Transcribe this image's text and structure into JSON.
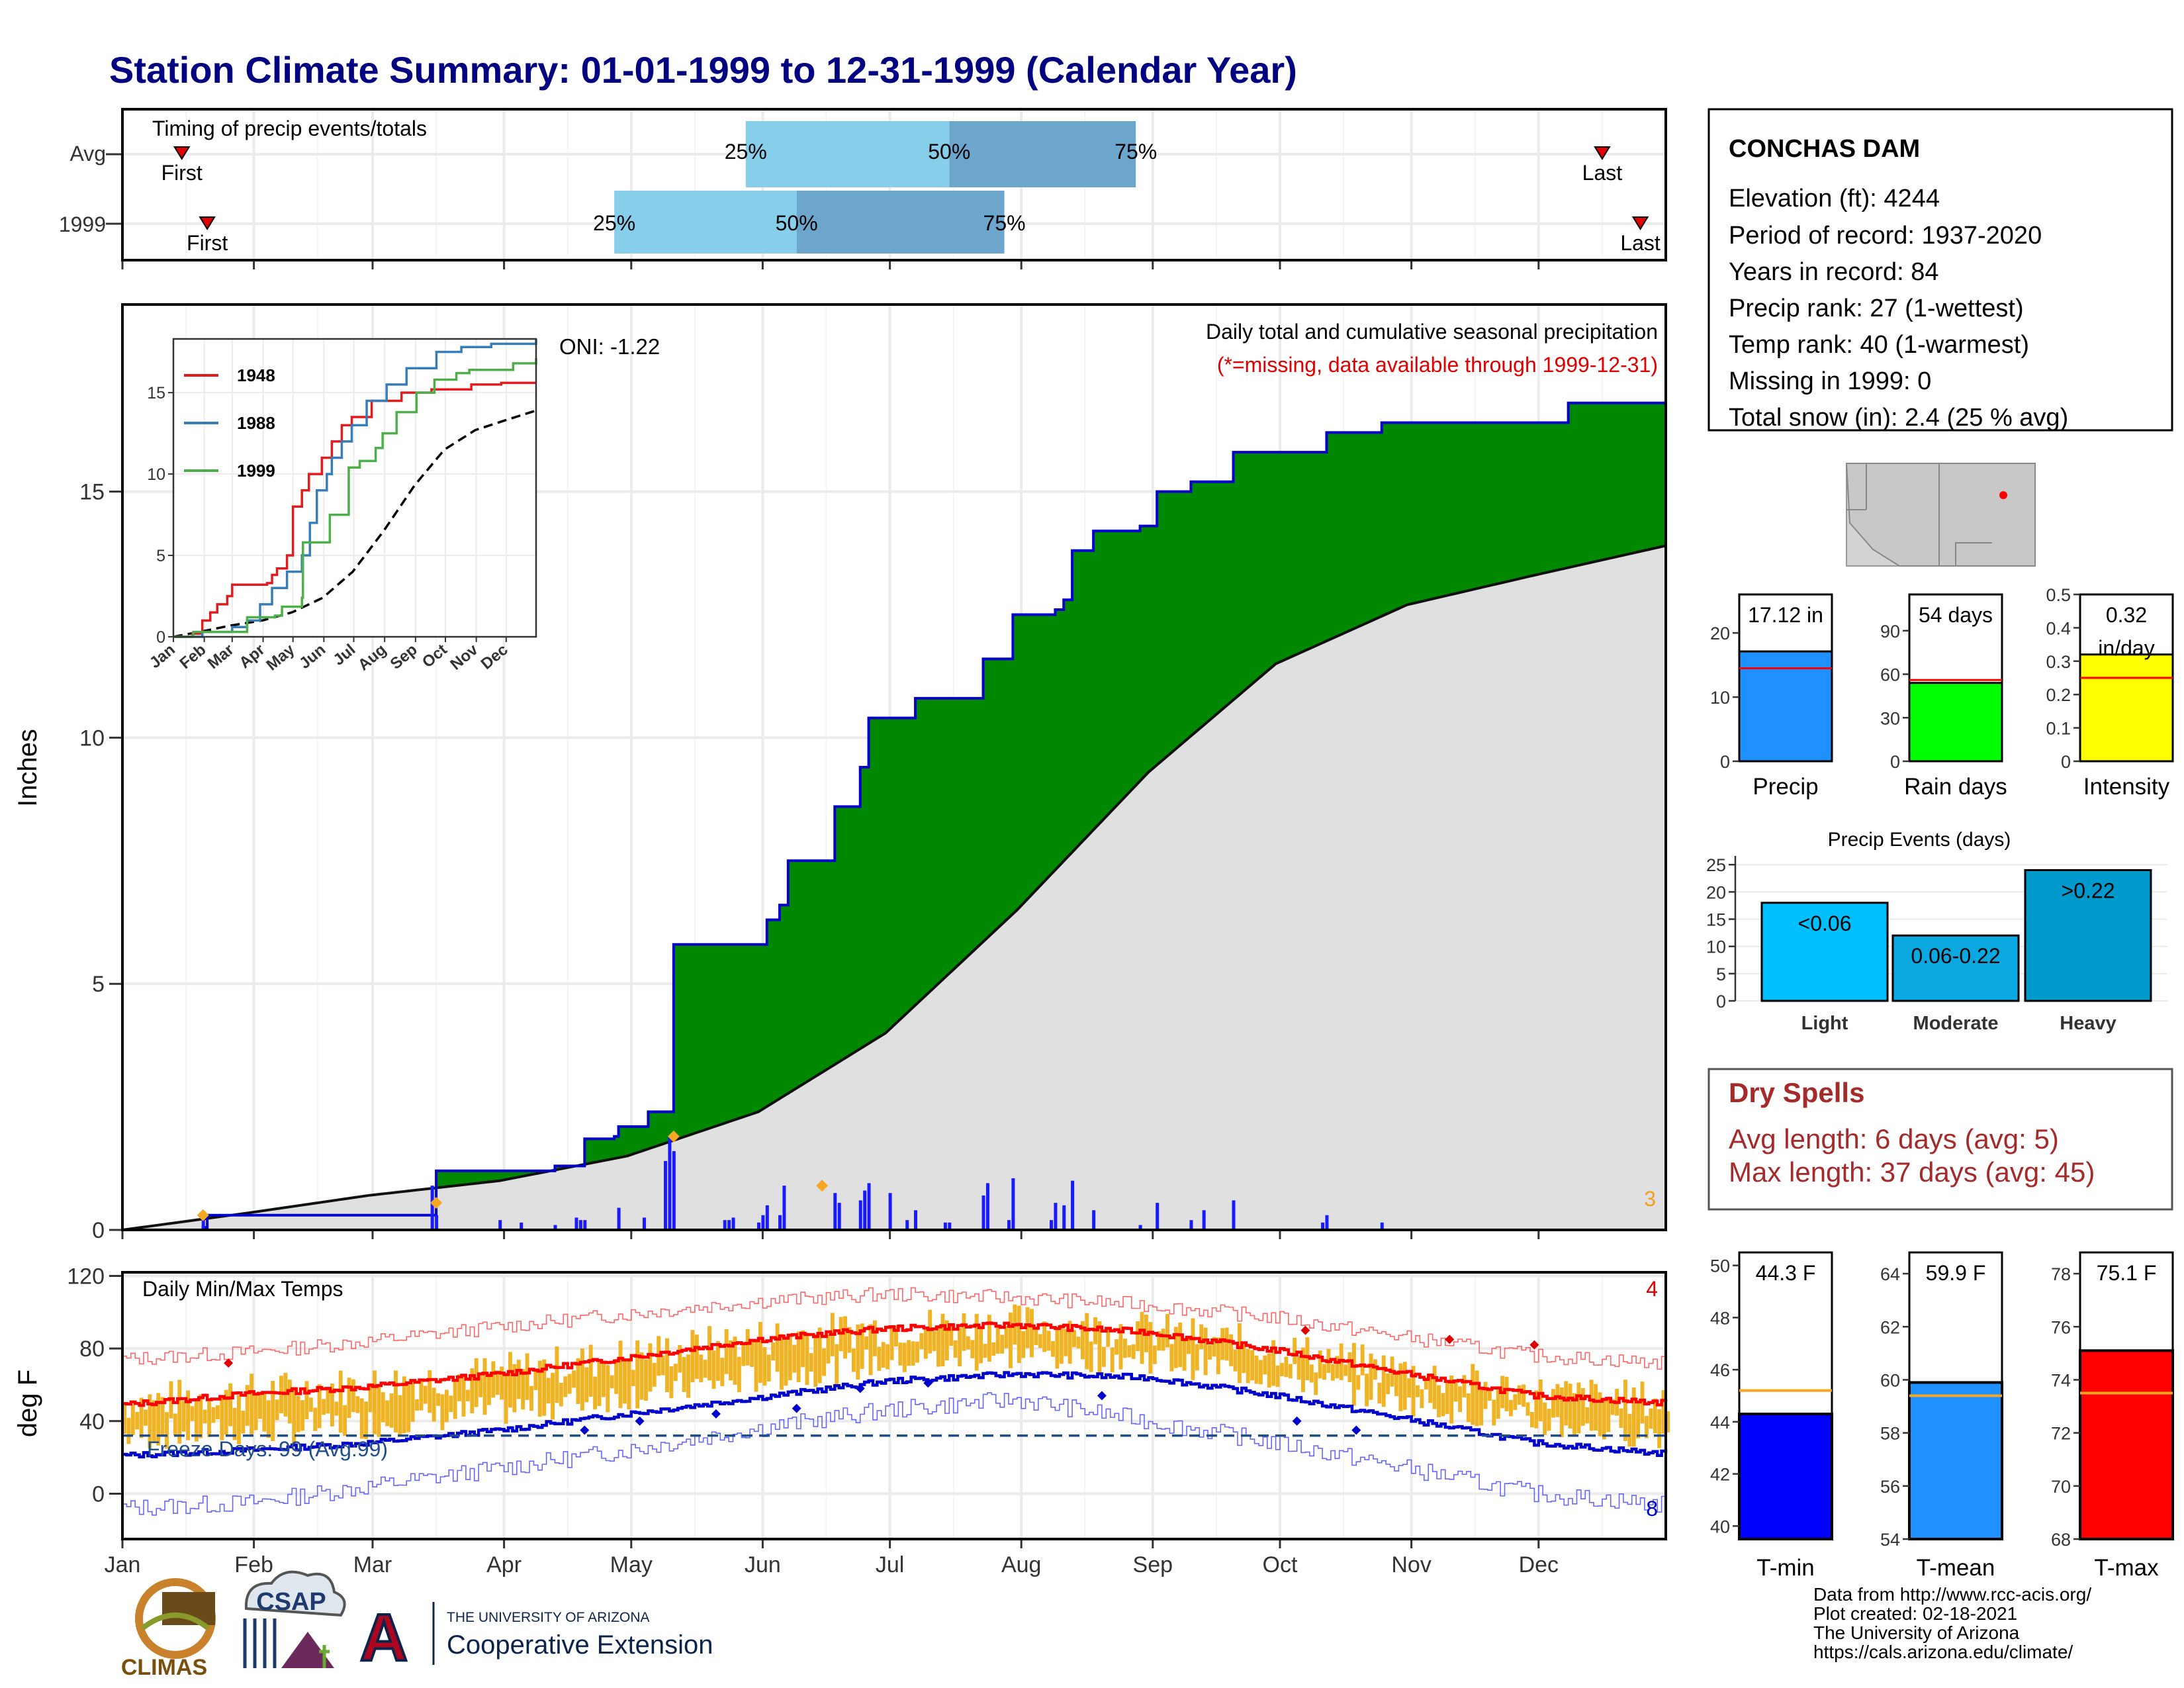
{
  "title": "Station Climate Summary: 01-01-1999 to 12-31-1999 (Calendar Year)",
  "months": [
    "Jan",
    "Feb",
    "Mar",
    "Apr",
    "May",
    "Jun",
    "Jul",
    "Aug",
    "Sep",
    "Oct",
    "Nov",
    "Dec"
  ],
  "timing": {
    "label": "Timing of precip events/totals",
    "rows": [
      {
        "name": "Avg",
        "first_label": "First",
        "first_doy": 15,
        "last_label": "Last",
        "last_doy": 350,
        "q25": 148,
        "q50": 196,
        "q75": 240
      },
      {
        "name": "1999",
        "first_label": "First",
        "first_doy": 21,
        "last_label": "Last",
        "last_doy": 359,
        "q25": 117,
        "q50": 160,
        "q75": 209
      }
    ],
    "pct_labels": [
      "25%",
      "50%",
      "75%"
    ]
  },
  "precip": {
    "ylabel": "Inches",
    "yticks": [
      0,
      5,
      10,
      15
    ],
    "ylim": [
      0,
      18.8
    ],
    "oni": "ONI: -1.22",
    "caption": "Daily total and cumulative seasonal precipitation",
    "note": "(*=missing, data available through 1999-12-31)",
    "corner_count": "3",
    "colors": {
      "above": "#008800",
      "below": "#7a4f0e",
      "normal": "#e0e0e0",
      "line": "#0000cc",
      "daily": "#1a1aff"
    },
    "cumulative_1999": [
      [
        1,
        0
      ],
      [
        20,
        0.05
      ],
      [
        21,
        0.3
      ],
      [
        74,
        0.3
      ],
      [
        75,
        1.2
      ],
      [
        90,
        1.2
      ],
      [
        95,
        1.2
      ],
      [
        103,
        1.3
      ],
      [
        110,
        1.85
      ],
      [
        117,
        1.9
      ],
      [
        118,
        2.1
      ],
      [
        125,
        2.4
      ],
      [
        130,
        2.4
      ],
      [
        131,
        5.8
      ],
      [
        151,
        5.8
      ],
      [
        153,
        6.3
      ],
      [
        156,
        6.6
      ],
      [
        158,
        7.5
      ],
      [
        168,
        7.5
      ],
      [
        169,
        8.6
      ],
      [
        175,
        9.4
      ],
      [
        177,
        10.4
      ],
      [
        186,
        10.4
      ],
      [
        188,
        10.8
      ],
      [
        200,
        10.8
      ],
      [
        204,
        11.6
      ],
      [
        210,
        11.6
      ],
      [
        211,
        12.5
      ],
      [
        220,
        12.5
      ],
      [
        221,
        12.6
      ],
      [
        223,
        12.8
      ],
      [
        225,
        13.8
      ],
      [
        230,
        14.2
      ],
      [
        231,
        14.2
      ],
      [
        241,
        14.3
      ],
      [
        245,
        15.0
      ],
      [
        253,
        15.2
      ],
      [
        263,
        15.8
      ],
      [
        283,
        15.8
      ],
      [
        285,
        16.2
      ],
      [
        298,
        16.4
      ],
      [
        342,
        16.8
      ],
      [
        365,
        17.12
      ]
    ],
    "normal_cumulative": [
      [
        1,
        0
      ],
      [
        31,
        0.35
      ],
      [
        59,
        0.7
      ],
      [
        90,
        1.0
      ],
      [
        120,
        1.5
      ],
      [
        151,
        2.4
      ],
      [
        181,
        4.0
      ],
      [
        212,
        6.5
      ],
      [
        243,
        9.3
      ],
      [
        273,
        11.5
      ],
      [
        304,
        12.7
      ],
      [
        334,
        13.3
      ],
      [
        365,
        13.9
      ]
    ],
    "daily_1999": [
      [
        20,
        0.25
      ],
      [
        74,
        0.9
      ],
      [
        75,
        0.3
      ],
      [
        90,
        0.2
      ],
      [
        95,
        0.15
      ],
      [
        103,
        0.1
      ],
      [
        108,
        0.25
      ],
      [
        109,
        0.2
      ],
      [
        110,
        0.2
      ],
      [
        118,
        0.45
      ],
      [
        124,
        0.25
      ],
      [
        129,
        1.4
      ],
      [
        130,
        1.9
      ],
      [
        131,
        1.6
      ],
      [
        143,
        0.2
      ],
      [
        144,
        0.2
      ],
      [
        145,
        0.25
      ],
      [
        151,
        0.15
      ],
      [
        152,
        0.3
      ],
      [
        153,
        0.5
      ],
      [
        156,
        0.3
      ],
      [
        157,
        0.9
      ],
      [
        169,
        0.75
      ],
      [
        170,
        0.55
      ],
      [
        175,
        0.6
      ],
      [
        176,
        0.8
      ],
      [
        177,
        0.95
      ],
      [
        182,
        0.75
      ],
      [
        186,
        0.2
      ],
      [
        188,
        0.4
      ],
      [
        195,
        0.15
      ],
      [
        196,
        0.15
      ],
      [
        204,
        0.7
      ],
      [
        205,
        0.95
      ],
      [
        210,
        0.2
      ],
      [
        211,
        1.05
      ],
      [
        220,
        0.2
      ],
      [
        221,
        0.55
      ],
      [
        223,
        0.5
      ],
      [
        225,
        1.0
      ],
      [
        230,
        0.4
      ],
      [
        241,
        0.1
      ],
      [
        245,
        0.55
      ],
      [
        253,
        0.2
      ],
      [
        256,
        0.4
      ],
      [
        263,
        0.6
      ],
      [
        284,
        0.15
      ],
      [
        285,
        0.3
      ],
      [
        298,
        0.15
      ]
    ],
    "marker_days": [
      [
        20,
        0.3
      ],
      [
        75,
        0.55
      ],
      [
        131,
        1.9
      ],
      [
        166,
        0.9
      ]
    ]
  },
  "inset": {
    "series": [
      {
        "name": "1948",
        "color": "#e41a1c",
        "points": [
          [
            1,
            0
          ],
          [
            20,
            0.2
          ],
          [
            30,
            1
          ],
          [
            38,
            1.5
          ],
          [
            45,
            2
          ],
          [
            55,
            2.5
          ],
          [
            60,
            3.2
          ],
          [
            80,
            3.2
          ],
          [
            95,
            3.3
          ],
          [
            100,
            3.8
          ],
          [
            105,
            4.2
          ],
          [
            115,
            5
          ],
          [
            121,
            8
          ],
          [
            130,
            9
          ],
          [
            137,
            10
          ],
          [
            150,
            11
          ],
          [
            160,
            12
          ],
          [
            170,
            13
          ],
          [
            180,
            13.5
          ],
          [
            200,
            14.5
          ],
          [
            230,
            15
          ],
          [
            260,
            15.2
          ],
          [
            300,
            15.5
          ],
          [
            330,
            15.6
          ],
          [
            365,
            15.6
          ]
        ]
      },
      {
        "name": "1988",
        "color": "#377eb8",
        "points": [
          [
            1,
            0
          ],
          [
            30,
            0.3
          ],
          [
            60,
            0.6
          ],
          [
            75,
            1
          ],
          [
            88,
            2
          ],
          [
            100,
            3
          ],
          [
            115,
            4
          ],
          [
            130,
            5
          ],
          [
            138,
            7
          ],
          [
            145,
            9
          ],
          [
            155,
            10
          ],
          [
            160,
            11
          ],
          [
            170,
            12
          ],
          [
            180,
            13
          ],
          [
            195,
            14.5
          ],
          [
            215,
            15.5
          ],
          [
            235,
            16.5
          ],
          [
            265,
            17.5
          ],
          [
            290,
            17.8
          ],
          [
            320,
            18
          ],
          [
            365,
            18.3
          ]
        ]
      },
      {
        "name": "1999",
        "color": "#4daf4a",
        "points": [
          [
            1,
            0
          ],
          [
            20,
            0.05
          ],
          [
            21,
            0.3
          ],
          [
            74,
            0.3
          ],
          [
            75,
            1.2
          ],
          [
            103,
            1.3
          ],
          [
            110,
            1.85
          ],
          [
            130,
            2.4
          ],
          [
            131,
            5.8
          ],
          [
            151,
            5.8
          ],
          [
            158,
            7.5
          ],
          [
            177,
            10.4
          ],
          [
            188,
            10.8
          ],
          [
            204,
            11.6
          ],
          [
            211,
            12.5
          ],
          [
            225,
            13.8
          ],
          [
            245,
            15.0
          ],
          [
            263,
            15.8
          ],
          [
            285,
            16.2
          ],
          [
            298,
            16.4
          ],
          [
            342,
            16.8
          ],
          [
            365,
            17.12
          ]
        ]
      }
    ],
    "avg": [
      [
        1,
        0
      ],
      [
        31,
        0.35
      ],
      [
        59,
        0.7
      ],
      [
        90,
        1.0
      ],
      [
        120,
        1.5
      ],
      [
        151,
        2.4
      ],
      [
        181,
        4.0
      ],
      [
        212,
        6.5
      ],
      [
        243,
        9.3
      ],
      [
        273,
        11.5
      ],
      [
        304,
        12.7
      ],
      [
        334,
        13.3
      ],
      [
        365,
        13.9
      ]
    ],
    "yticks": [
      0,
      5,
      10,
      15
    ],
    "ylim": [
      0,
      18.3
    ]
  },
  "temps": {
    "label": "Daily Min/Max Temps",
    "ylabel": "deg F",
    "yticks": [
      0,
      40,
      80,
      120
    ],
    "ylim": [
      -25,
      122
    ],
    "freeze_label": "Freeze Days: 99 (Avg:99)",
    "freeze_line": 32,
    "count_max": "4",
    "count_min": "8",
    "colors": {
      "bars": "#f0b323",
      "avgmax": "#ff0000",
      "avgmin": "#0000cc",
      "recmax": "#ff6666",
      "recmin": "#6666ff",
      "freeze": "#1f4e8c"
    },
    "avg_max": [
      [
        1,
        49
      ],
      [
        31,
        55
      ],
      [
        59,
        59
      ],
      [
        90,
        66
      ],
      [
        120,
        75
      ],
      [
        151,
        85
      ],
      [
        181,
        91
      ],
      [
        212,
        93
      ],
      [
        243,
        89
      ],
      [
        273,
        79
      ],
      [
        304,
        66
      ],
      [
        334,
        54
      ],
      [
        365,
        50
      ]
    ],
    "avg_min": [
      [
        1,
        21
      ],
      [
        31,
        24
      ],
      [
        59,
        28
      ],
      [
        90,
        35
      ],
      [
        120,
        44
      ],
      [
        151,
        53
      ],
      [
        181,
        62
      ],
      [
        212,
        66
      ],
      [
        243,
        64
      ],
      [
        273,
        54
      ],
      [
        304,
        41
      ],
      [
        334,
        28
      ],
      [
        365,
        22
      ]
    ],
    "rec_max": [
      [
        1,
        74
      ],
      [
        31,
        78
      ],
      [
        59,
        84
      ],
      [
        90,
        92
      ],
      [
        120,
        99
      ],
      [
        151,
        106
      ],
      [
        181,
        110
      ],
      [
        212,
        108
      ],
      [
        243,
        104
      ],
      [
        273,
        97
      ],
      [
        304,
        86
      ],
      [
        334,
        76
      ],
      [
        365,
        72
      ]
    ],
    "rec_min": [
      [
        1,
        -8
      ],
      [
        31,
        -5
      ],
      [
        59,
        4
      ],
      [
        90,
        14
      ],
      [
        120,
        24
      ],
      [
        151,
        36
      ],
      [
        181,
        46
      ],
      [
        212,
        52
      ],
      [
        243,
        40
      ],
      [
        273,
        28
      ],
      [
        304,
        14
      ],
      [
        334,
        0
      ],
      [
        365,
        -6
      ]
    ]
  },
  "station": {
    "name": "CONCHAS DAM",
    "lines": [
      "Elevation (ft): 4244",
      "Period of record: 1937-2020",
      "Years in record: 84",
      "Precip rank: 27 (1-wettest)",
      "Temp rank: 40 (1-warmest)",
      "Missing in 1999: 0",
      "Total snow (in): 2.4 (25 % avg)"
    ]
  },
  "summary_bars": [
    {
      "name": "Precip",
      "value_label": "17.12 in",
      "value": 17.12,
      "avg": 14.5,
      "ymax": 26,
      "yticks": [
        0,
        10,
        20
      ],
      "color": "#1e90ff"
    },
    {
      "name": "Rain days",
      "value_label": "54 days",
      "value": 54,
      "avg": 56,
      "ymax": 115,
      "yticks": [
        0,
        30,
        60,
        90
      ],
      "color": "#00ff00"
    },
    {
      "name": "Intensity",
      "value_label": "0.32",
      "value_label2": "in/day",
      "value": 0.32,
      "avg": 0.25,
      "ymax": 0.5,
      "yticks": [
        0.0,
        0.1,
        0.2,
        0.3,
        0.4,
        0.5
      ],
      "color": "#ffff00"
    }
  ],
  "precip_events": {
    "title": "Precip Events (days)",
    "yticks": [
      0,
      5,
      10,
      15,
      20,
      25
    ],
    "ymax": 26,
    "bars": [
      {
        "name": "Light",
        "label": "<0.06",
        "value": 18,
        "color": "#00bfff"
      },
      {
        "name": "Moderate",
        "label": "0.06-0.22",
        "value": 12,
        "color": "#0aa8e0"
      },
      {
        "name": "Heavy",
        "label": ">0.22",
        "value": 24,
        "color": "#0099cc"
      }
    ]
  },
  "dry_spells": {
    "title": "Dry Spells",
    "lines": [
      "Avg length: 6 days (avg: 5)",
      "Max length: 37 days (avg: 45)"
    ]
  },
  "temp_bars": [
    {
      "name": "T-min",
      "value_label": "44.3 F",
      "value": 44.3,
      "avg": 45.2,
      "ymin": 39.5,
      "ymax": 50.5,
      "yticks": [
        40,
        42,
        44,
        46,
        48,
        50
      ],
      "color": "#0000ff"
    },
    {
      "name": "T-mean",
      "value_label": "59.9 F",
      "value": 59.9,
      "avg": 59.4,
      "ymin": 54,
      "ymax": 64.8,
      "yticks": [
        54,
        56,
        58,
        60,
        62,
        64
      ],
      "color": "#1e90ff"
    },
    {
      "name": "T-max",
      "value_label": "75.1 F",
      "value": 75.1,
      "avg": 73.5,
      "ymin": 68,
      "ymax": 78.8,
      "yticks": [
        68,
        70,
        72,
        74,
        76,
        78
      ],
      "color": "#ff0000"
    }
  ],
  "footer": {
    "lines": [
      "Data from http://www.rcc-acis.org/",
      "Plot created: 02-18-2021",
      "The University of Arizona",
      "https://cals.arizona.edu/climate/"
    ],
    "logo_climas": "CLIMAS",
    "logo_csap": "CSAP",
    "ua_small": "THE UNIVERSITY OF ARIZONA",
    "ua_big": "Cooperative Extension"
  }
}
